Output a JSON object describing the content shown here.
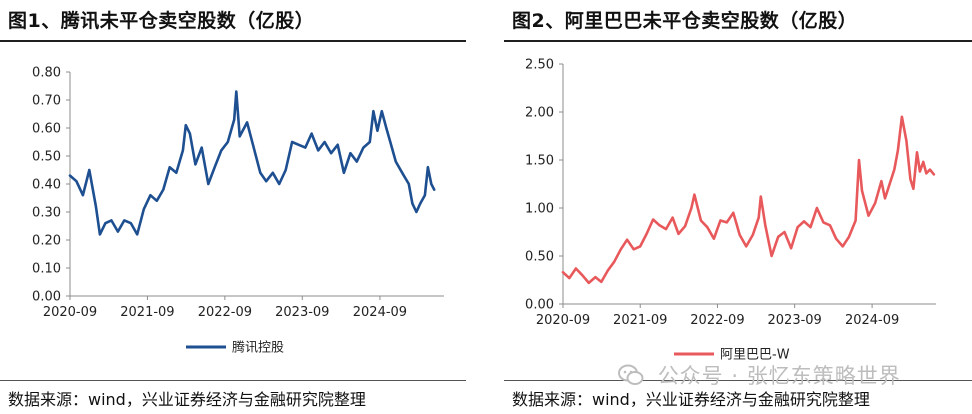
{
  "panels": {
    "left": {
      "title": "图1、腾讯未平仓卖空股数（亿股）",
      "source": "数据来源：wind，兴业证券经济与金融研究院整理"
    },
    "right": {
      "title": "图2、阿里巴巴未平仓卖空股数（亿股）",
      "source": "数据来源：wind，兴业证券经济与金融研究院整理"
    }
  },
  "watermark": {
    "text": "公众号 · 张忆东策略世界",
    "icon": "wechat-icon"
  },
  "chart_data": [
    {
      "type": "line",
      "title": "图1、腾讯未平仓卖空股数（亿股）",
      "xlabel": "",
      "ylabel": "",
      "x_ticks": [
        "2020-09",
        "2021-09",
        "2022-09",
        "2023-09",
        "2024-09"
      ],
      "y_ticks": [
        "0.00",
        "0.10",
        "0.20",
        "0.30",
        "0.40",
        "0.50",
        "0.60",
        "0.70",
        "0.80"
      ],
      "ylim": [
        0,
        0.8
      ],
      "x_range": [
        "2020-09-01",
        "2025-06-30"
      ],
      "grid": false,
      "legend": "bottom",
      "series": [
        {
          "name": "腾讯控股",
          "color": "#1d4f91",
          "points": [
            [
              "2020-09-01",
              0.43
            ],
            [
              "2020-10-01",
              0.41
            ],
            [
              "2020-11-01",
              0.36
            ],
            [
              "2020-12-01",
              0.45
            ],
            [
              "2021-01-01",
              0.32
            ],
            [
              "2021-01-20",
              0.22
            ],
            [
              "2021-02-15",
              0.26
            ],
            [
              "2021-03-15",
              0.27
            ],
            [
              "2021-04-15",
              0.23
            ],
            [
              "2021-05-15",
              0.27
            ],
            [
              "2021-06-15",
              0.26
            ],
            [
              "2021-07-15",
              0.22
            ],
            [
              "2021-08-15",
              0.31
            ],
            [
              "2021-09-15",
              0.36
            ],
            [
              "2021-10-15",
              0.34
            ],
            [
              "2021-11-15",
              0.38
            ],
            [
              "2021-12-15",
              0.46
            ],
            [
              "2022-01-15",
              0.44
            ],
            [
              "2022-02-15",
              0.52
            ],
            [
              "2022-03-01",
              0.61
            ],
            [
              "2022-03-20",
              0.58
            ],
            [
              "2022-04-15",
              0.47
            ],
            [
              "2022-05-15",
              0.53
            ],
            [
              "2022-06-15",
              0.4
            ],
            [
              "2022-07-15",
              0.46
            ],
            [
              "2022-08-15",
              0.52
            ],
            [
              "2022-09-15",
              0.55
            ],
            [
              "2022-10-15",
              0.63
            ],
            [
              "2022-10-25",
              0.73
            ],
            [
              "2022-11-10",
              0.57
            ],
            [
              "2022-12-15",
              0.62
            ],
            [
              "2023-01-15",
              0.53
            ],
            [
              "2023-02-15",
              0.44
            ],
            [
              "2023-03-15",
              0.41
            ],
            [
              "2023-04-15",
              0.44
            ],
            [
              "2023-05-15",
              0.4
            ],
            [
              "2023-06-15",
              0.45
            ],
            [
              "2023-07-15",
              0.55
            ],
            [
              "2023-08-15",
              0.54
            ],
            [
              "2023-09-15",
              0.53
            ],
            [
              "2023-10-15",
              0.58
            ],
            [
              "2023-11-15",
              0.52
            ],
            [
              "2023-12-15",
              0.55
            ],
            [
              "2024-01-15",
              0.51
            ],
            [
              "2024-02-15",
              0.54
            ],
            [
              "2024-03-15",
              0.44
            ],
            [
              "2024-04-15",
              0.51
            ],
            [
              "2024-05-15",
              0.48
            ],
            [
              "2024-06-15",
              0.53
            ],
            [
              "2024-07-15",
              0.55
            ],
            [
              "2024-08-01",
              0.66
            ],
            [
              "2024-08-20",
              0.59
            ],
            [
              "2024-09-10",
              0.66
            ],
            [
              "2024-10-01",
              0.6
            ],
            [
              "2024-10-20",
              0.55
            ],
            [
              "2024-11-15",
              0.48
            ],
            [
              "2024-12-15",
              0.44
            ],
            [
              "2025-01-15",
              0.4
            ],
            [
              "2025-02-01",
              0.33
            ],
            [
              "2025-02-20",
              0.3
            ],
            [
              "2025-03-10",
              0.33
            ],
            [
              "2025-04-01",
              0.36
            ],
            [
              "2025-04-15",
              0.46
            ],
            [
              "2025-05-01",
              0.4
            ],
            [
              "2025-05-15",
              0.38
            ]
          ]
        }
      ]
    },
    {
      "type": "line",
      "title": "图2、阿里巴巴未平仓卖空股数（亿股）",
      "xlabel": "",
      "ylabel": "",
      "x_ticks": [
        "2020-09",
        "2021-09",
        "2022-09",
        "2023-09",
        "2024-09"
      ],
      "y_ticks": [
        "0.00",
        "0.50",
        "1.00",
        "1.50",
        "2.00",
        "2.50"
      ],
      "ylim": [
        0,
        2.5
      ],
      "x_range": [
        "2020-09-01",
        "2025-06-30"
      ],
      "grid": false,
      "legend": "bottom",
      "series": [
        {
          "name": "阿里巴巴-W",
          "color": "#e8595c",
          "points": [
            [
              "2020-09-01",
              0.33
            ],
            [
              "2020-10-01",
              0.27
            ],
            [
              "2020-11-01",
              0.37
            ],
            [
              "2020-12-01",
              0.3
            ],
            [
              "2021-01-01",
              0.22
            ],
            [
              "2021-02-01",
              0.28
            ],
            [
              "2021-03-01",
              0.23
            ],
            [
              "2021-04-01",
              0.35
            ],
            [
              "2021-05-01",
              0.44
            ],
            [
              "2021-06-01",
              0.57
            ],
            [
              "2021-07-01",
              0.67
            ],
            [
              "2021-08-01",
              0.57
            ],
            [
              "2021-09-01",
              0.6
            ],
            [
              "2021-10-01",
              0.73
            ],
            [
              "2021-11-01",
              0.88
            ],
            [
              "2021-12-01",
              0.82
            ],
            [
              "2022-01-01",
              0.78
            ],
            [
              "2022-02-01",
              0.9
            ],
            [
              "2022-03-01",
              0.73
            ],
            [
              "2022-04-01",
              0.81
            ],
            [
              "2022-05-01",
              1.0
            ],
            [
              "2022-05-15",
              1.14
            ],
            [
              "2022-06-15",
              0.87
            ],
            [
              "2022-07-15",
              0.8
            ],
            [
              "2022-08-15",
              0.68
            ],
            [
              "2022-09-15",
              0.87
            ],
            [
              "2022-10-15",
              0.85
            ],
            [
              "2022-11-15",
              0.95
            ],
            [
              "2022-12-15",
              0.72
            ],
            [
              "2023-01-15",
              0.6
            ],
            [
              "2023-02-15",
              0.72
            ],
            [
              "2023-03-15",
              0.9
            ],
            [
              "2023-03-25",
              1.12
            ],
            [
              "2023-04-15",
              0.82
            ],
            [
              "2023-05-15",
              0.5
            ],
            [
              "2023-06-15",
              0.7
            ],
            [
              "2023-07-15",
              0.75
            ],
            [
              "2023-08-15",
              0.58
            ],
            [
              "2023-09-15",
              0.8
            ],
            [
              "2023-10-15",
              0.86
            ],
            [
              "2023-11-15",
              0.8
            ],
            [
              "2023-12-15",
              1.0
            ],
            [
              "2024-01-15",
              0.85
            ],
            [
              "2024-02-15",
              0.82
            ],
            [
              "2024-03-15",
              0.68
            ],
            [
              "2024-04-15",
              0.6
            ],
            [
              "2024-05-15",
              0.7
            ],
            [
              "2024-06-15",
              0.87
            ],
            [
              "2024-07-01",
              1.5
            ],
            [
              "2024-07-15",
              1.18
            ],
            [
              "2024-08-15",
              0.92
            ],
            [
              "2024-09-15",
              1.05
            ],
            [
              "2024-10-15",
              1.28
            ],
            [
              "2024-11-01",
              1.1
            ],
            [
              "2024-12-15",
              1.4
            ],
            [
              "2025-01-01",
              1.6
            ],
            [
              "2025-01-20",
              1.95
            ],
            [
              "2025-02-10",
              1.7
            ],
            [
              "2025-03-01",
              1.3
            ],
            [
              "2025-03-15",
              1.2
            ],
            [
              "2025-04-01",
              1.58
            ],
            [
              "2025-04-15",
              1.38
            ],
            [
              "2025-05-01",
              1.48
            ],
            [
              "2025-05-15",
              1.36
            ],
            [
              "2025-06-01",
              1.4
            ],
            [
              "2025-06-20",
              1.35
            ]
          ]
        }
      ]
    }
  ]
}
